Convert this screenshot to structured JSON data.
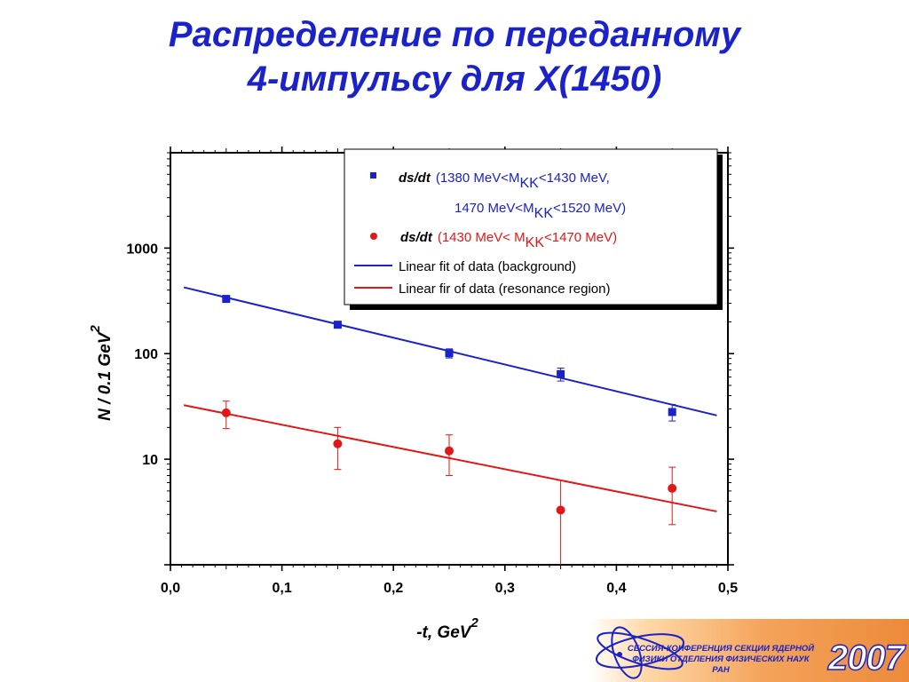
{
  "slide": {
    "title_line1": "Распределение по переданному",
    "title_line2": "4-импульсу для X(1450)"
  },
  "banner": {
    "line1": "СЕССИЯ-КОНФЕРЕНЦИЯ СЕКЦИИ ЯДЕРНОЙ",
    "line2": "ФИЗИКИ ОТДЕЛЕНИЯ ФИЗИЧЕСКИХ НАУК",
    "line3": "РАН",
    "year": "2007",
    "colors": {
      "text": "#1a22c8",
      "orange": "#ec8a3a"
    }
  },
  "chart_data": {
    "type": "scatter",
    "xlabel": "-t, GeV",
    "xlabel_sup": "2",
    "ylabel": "N / 0.1 GeV",
    "ylabel_sup": "2",
    "xlim": [
      0.0,
      0.5
    ],
    "ylim": [
      1,
      8000
    ],
    "yscale": "log",
    "x_ticks": [
      "0,0",
      "0,1",
      "0,2",
      "0,3",
      "0,4",
      "0,5"
    ],
    "x_tick_values": [
      0.0,
      0.1,
      0.2,
      0.3,
      0.4,
      0.5
    ],
    "y_ticks": [
      "10",
      "100",
      "1000"
    ],
    "y_tick_values": [
      10,
      100,
      1000
    ],
    "series": [
      {
        "color": "#1a22c8",
        "marker": "square",
        "x": [
          0.05,
          0.15,
          0.25,
          0.35,
          0.45
        ],
        "y": [
          330,
          188,
          101,
          64,
          28
        ],
        "err_low": [
          16,
          10,
          10,
          9,
          5
        ],
        "err_high": [
          16,
          10,
          10,
          9,
          5
        ]
      },
      {
        "color": "#e01818",
        "marker": "circle",
        "x": [
          0.05,
          0.15,
          0.25,
          0.35,
          0.45
        ],
        "y": [
          27.5,
          14,
          12,
          3.3,
          5.3
        ],
        "err_low": [
          8,
          6,
          5,
          3.3,
          2.9
        ],
        "err_high": [
          8,
          6,
          5,
          3.0,
          3.1
        ]
      }
    ],
    "fits": [
      {
        "color": "#1a22c8",
        "x": [
          0.012,
          0.49
        ],
        "y": [
          425,
          26
        ]
      },
      {
        "color": "#e01818",
        "x": [
          0.012,
          0.49
        ],
        "y": [
          32.5,
          3.2
        ]
      }
    ],
    "legend": {
      "placement": "top-right",
      "entries": [
        {
          "marker": "square",
          "color": "#1a22c8",
          "label_em": "ds/dt",
          "label_a": "(1380 MeV<M",
          "label_sub": "KK",
          "label_b": "<1430 MeV,",
          "label_c": "1470 MeV<M",
          "label_c_sub": "KK",
          "label_d": "<1520 MeV)"
        },
        {
          "marker": "circle",
          "color": "#e01818",
          "label_em": "ds/dt",
          "label_a": "(1430 MeV< M",
          "label_sub": "KK",
          "label_b": "<1470 MeV)"
        },
        {
          "marker": "line",
          "color": "#1a22c8",
          "label": "Linear fit of data (background)"
        },
        {
          "marker": "line",
          "color": "#e01818",
          "label": "Linear fir of data (resonance region)"
        }
      ]
    }
  }
}
